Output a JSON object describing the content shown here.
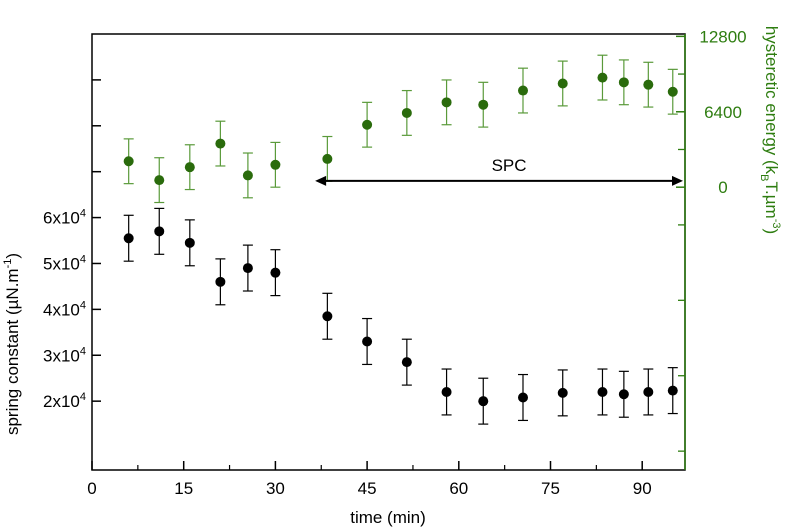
{
  "chart_data": {
    "type": "scatter",
    "xlabel": "time (min)",
    "xlim": [
      0,
      97
    ],
    "x_ticks": [
      "0",
      "15",
      "30",
      "45",
      "60",
      "75",
      "90"
    ],
    "y_left": {
      "label_parts": {
        "main": "spring constant (µN.m",
        "sup": "-1",
        "end": ")"
      },
      "lim": [
        5000,
        100000
      ],
      "ticks": [
        {
          "value": 20000,
          "mant": "2x10",
          "exp": "4"
        },
        {
          "value": 30000,
          "mant": "3x10",
          "exp": "4"
        },
        {
          "value": 40000,
          "mant": "4x10",
          "exp": "4"
        },
        {
          "value": 50000,
          "mant": "5x10",
          "exp": "4"
        },
        {
          "value": 60000,
          "mant": "6x10",
          "exp": "4"
        }
      ],
      "minor_ticks": [
        70000,
        80000,
        90000
      ]
    },
    "y_right": {
      "label_parts": {
        "main": "hysteretic energy (k",
        "sub": "B",
        "mid": "T.µm",
        "sup": "-3",
        "end": ")"
      },
      "lim": [
        -24000,
        13000
      ],
      "ticks": [
        {
          "value": 0,
          "label": "0"
        },
        {
          "value": 6400,
          "label": "6400"
        },
        {
          "value": 12800,
          "label": "12800"
        }
      ],
      "minor_ticks": [
        -3200,
        3200,
        9600,
        -9600,
        -16000,
        -22400
      ],
      "color": "#2e7d10"
    },
    "series": [
      {
        "axis": "left",
        "color": "#000000",
        "x": [
          6,
          11,
          16,
          21,
          25.5,
          30,
          38.5,
          45,
          51.5,
          58,
          64,
          70.5,
          77,
          83.5,
          87,
          91,
          95
        ],
        "y": [
          55500,
          57000,
          54500,
          46000,
          49000,
          48000,
          38500,
          33000,
          28500,
          22000,
          20000,
          20800,
          21800,
          22000,
          21500,
          22000,
          22300
        ],
        "err": [
          5000,
          5000,
          5000,
          5000,
          5000,
          5000,
          5000,
          5000,
          5000,
          5000,
          5000,
          5000,
          5000,
          5000,
          5000,
          5000,
          5000
        ]
      },
      {
        "axis": "right",
        "color": "#2a6b0c",
        "err_color": "#5a9a3a",
        "x": [
          6,
          11,
          16,
          21,
          25.5,
          30,
          38.5,
          45,
          51.5,
          58,
          64,
          70.5,
          77,
          83.5,
          87,
          91,
          95
        ],
        "y": [
          2200,
          600,
          1700,
          3700,
          1000,
          1900,
          2400,
          5300,
          6300,
          7200,
          7000,
          8200,
          8800,
          9300,
          8900,
          8700,
          8100
        ],
        "err": [
          1900,
          1900,
          1900,
          1900,
          1900,
          1900,
          1900,
          1900,
          1900,
          1900,
          1900,
          1900,
          1900,
          1900,
          1900,
          1900,
          1900
        ]
      }
    ],
    "annotation": {
      "label": "SPC",
      "x_start": 36.5,
      "x_end": 97,
      "y_left": 68000
    }
  }
}
